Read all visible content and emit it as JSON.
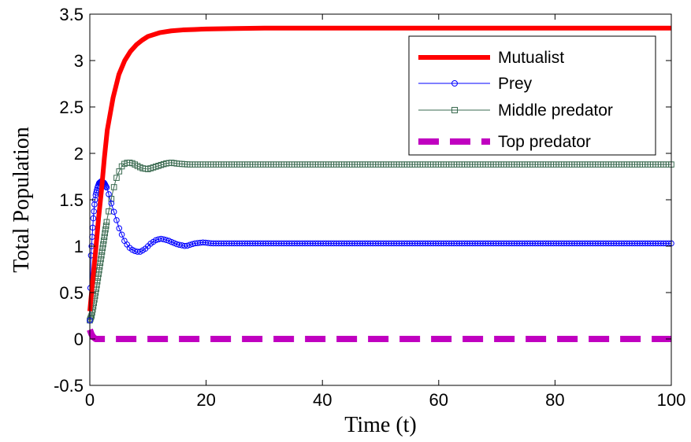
{
  "chart_data": {
    "type": "line",
    "title": "",
    "xlabel": "Time (t)",
    "ylabel": "Total Population",
    "xlim": [
      0,
      100
    ],
    "ylim": [
      -0.5,
      3.5
    ],
    "xticks": [
      0,
      20,
      40,
      60,
      80,
      100
    ],
    "yticks": [
      -0.5,
      0,
      0.5,
      1,
      1.5,
      2,
      2.5,
      3,
      3.5
    ],
    "xtick_labels": [
      "0",
      "20",
      "40",
      "60",
      "80",
      "100"
    ],
    "ytick_labels": [
      "-0.5",
      "0",
      "0.5",
      "1",
      "1.5",
      "2",
      "2.5",
      "3",
      "3.5"
    ],
    "grid": false,
    "legend_position": "top-right",
    "series": [
      {
        "name": "Mutualist",
        "color": "#ff0000",
        "style": "solid-thick",
        "marker": "none",
        "x": [
          0,
          0.3,
          0.6,
          1,
          1.5,
          2,
          2.5,
          3,
          4,
          5,
          6,
          7,
          8,
          9,
          10,
          12,
          14,
          16,
          18,
          20,
          25,
          30,
          40,
          50,
          60,
          70,
          80,
          90,
          100
        ],
        "y": [
          0.3,
          0.5,
          0.7,
          0.95,
          1.3,
          1.6,
          1.95,
          2.25,
          2.6,
          2.85,
          3.0,
          3.1,
          3.17,
          3.22,
          3.26,
          3.3,
          3.32,
          3.33,
          3.335,
          3.34,
          3.345,
          3.35,
          3.35,
          3.35,
          3.35,
          3.35,
          3.35,
          3.35,
          3.35
        ]
      },
      {
        "name": "Prey",
        "color": "#0000ff",
        "style": "solid-thin",
        "marker": "circle",
        "x": [
          0,
          0.2,
          0.4,
          0.6,
          0.8,
          1,
          1.3,
          1.6,
          2,
          2.5,
          3,
          3.5,
          4,
          5,
          6,
          7,
          8,
          8.7,
          9.5,
          10.5,
          11.5,
          12.3,
          13.5,
          15,
          16.5,
          18,
          19.5,
          21,
          23,
          26,
          30,
          40,
          50,
          60,
          70,
          80,
          90,
          100
        ],
        "y": [
          0.2,
          0.9,
          1.1,
          1.3,
          1.45,
          1.55,
          1.63,
          1.68,
          1.7,
          1.68,
          1.62,
          1.5,
          1.4,
          1.2,
          1.05,
          0.97,
          0.94,
          0.94,
          0.97,
          1.03,
          1.07,
          1.08,
          1.06,
          1.02,
          1.0,
          1.03,
          1.04,
          1.03,
          1.03,
          1.03,
          1.03,
          1.03,
          1.03,
          1.03,
          1.03,
          1.03,
          1.03,
          1.03
        ]
      },
      {
        "name": "Middle predator",
        "color": "#3a6a50",
        "style": "solid-thin",
        "marker": "square",
        "x": [
          0,
          0.3,
          0.6,
          1,
          1.5,
          2,
          2.5,
          3,
          3.5,
          4,
          4.5,
          5,
          5.5,
          6,
          6.5,
          7,
          7.5,
          8,
          9,
          10,
          11,
          12,
          13,
          14,
          15,
          17,
          20,
          30,
          40,
          50,
          60,
          70,
          80,
          90,
          100
        ],
        "y": [
          0.2,
          0.25,
          0.35,
          0.5,
          0.7,
          0.9,
          1.1,
          1.3,
          1.45,
          1.6,
          1.72,
          1.8,
          1.86,
          1.89,
          1.9,
          1.9,
          1.89,
          1.87,
          1.84,
          1.83,
          1.85,
          1.87,
          1.89,
          1.9,
          1.89,
          1.88,
          1.88,
          1.88,
          1.88,
          1.88,
          1.88,
          1.88,
          1.88,
          1.88,
          1.88
        ]
      },
      {
        "name": "Top predator",
        "color": "#c000c0",
        "style": "dashed-thick",
        "marker": "none",
        "x": [
          0,
          0.3,
          0.6,
          1,
          2,
          5,
          10,
          20,
          40,
          60,
          80,
          100
        ],
        "y": [
          0.1,
          0.05,
          0.02,
          0.0,
          0.0,
          0.0,
          0.0,
          0.0,
          0.0,
          0.0,
          0.0,
          0.0
        ]
      }
    ]
  }
}
